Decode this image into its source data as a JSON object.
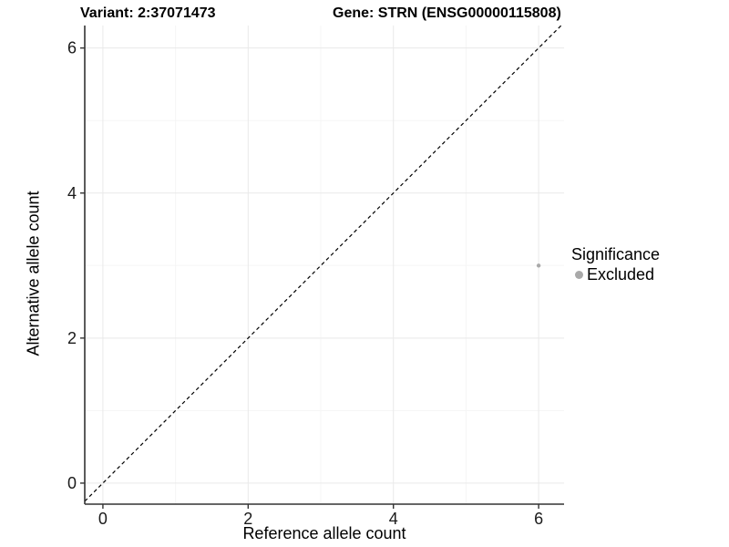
{
  "header": {
    "variant_title": "Variant: 2:37071473",
    "gene_title": "Gene: STRN (ENSG00000115808)"
  },
  "chart_data": {
    "type": "scatter",
    "xlabel": "Reference allele count",
    "ylabel": "Alternative allele count",
    "xlim": [
      -0.25,
      6.35
    ],
    "ylim": [
      -0.29,
      6.31
    ],
    "xticks": [
      0,
      2,
      4,
      6
    ],
    "yticks": [
      0,
      2,
      4,
      6
    ],
    "minor_xticks": [
      1,
      3,
      5
    ],
    "minor_yticks": [
      1,
      3,
      5
    ],
    "grid": true,
    "points": [
      {
        "x": 6,
        "y": 3,
        "series": "Excluded"
      }
    ],
    "reference_line": {
      "type": "identity",
      "style": "dashed",
      "color": "#000000"
    },
    "legend": {
      "title": "Significance",
      "position": "right",
      "items": [
        {
          "label": "Excluded",
          "color": "#a9a9a9"
        }
      ]
    },
    "colors": {
      "point": "#b5b5b5",
      "major_grid": "#e9e9e9",
      "minor_grid": "#f5f5f5",
      "axis": "#333333",
      "tick_label": "#1a1a1a"
    }
  }
}
